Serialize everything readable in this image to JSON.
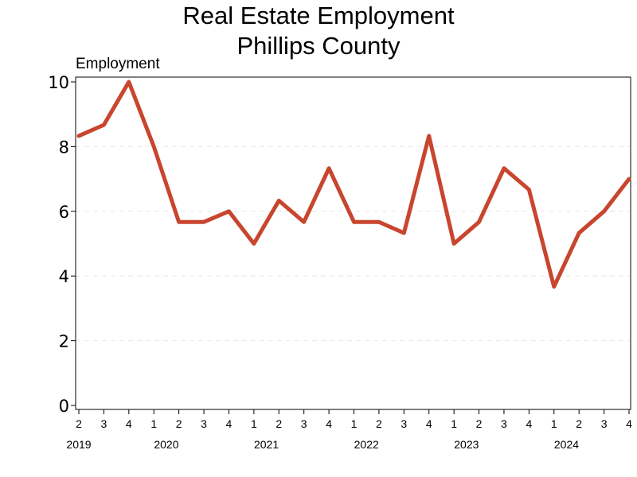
{
  "chart_data": {
    "type": "line",
    "title": [
      "Real Estate Employment",
      "Phillips County"
    ],
    "ylabel": "Employment",
    "ylim": [
      0,
      10
    ],
    "yticks": [
      0,
      2,
      4,
      6,
      8,
      10
    ],
    "grid": "horizontal-dashed",
    "color": "#c8452e",
    "x": [
      {
        "quarter": "2",
        "year": "2019"
      },
      {
        "quarter": "3",
        "year": "2019"
      },
      {
        "quarter": "4",
        "year": "2019"
      },
      {
        "quarter": "1",
        "year": "2020"
      },
      {
        "quarter": "2",
        "year": "2020"
      },
      {
        "quarter": "3",
        "year": "2020"
      },
      {
        "quarter": "4",
        "year": "2020"
      },
      {
        "quarter": "1",
        "year": "2021"
      },
      {
        "quarter": "2",
        "year": "2021"
      },
      {
        "quarter": "3",
        "year": "2021"
      },
      {
        "quarter": "4",
        "year": "2021"
      },
      {
        "quarter": "1",
        "year": "2022"
      },
      {
        "quarter": "2",
        "year": "2022"
      },
      {
        "quarter": "3",
        "year": "2022"
      },
      {
        "quarter": "4",
        "year": "2022"
      },
      {
        "quarter": "1",
        "year": "2023"
      },
      {
        "quarter": "2",
        "year": "2023"
      },
      {
        "quarter": "3",
        "year": "2023"
      },
      {
        "quarter": "4",
        "year": "2023"
      },
      {
        "quarter": "1",
        "year": "2024"
      },
      {
        "quarter": "2",
        "year": "2024"
      },
      {
        "quarter": "3",
        "year": "2024"
      },
      {
        "quarter": "4",
        "year": "2024"
      }
    ],
    "values": [
      8.33,
      8.67,
      10.0,
      8.0,
      5.67,
      5.67,
      6.0,
      5.0,
      6.33,
      5.67,
      7.33,
      5.67,
      5.67,
      5.33,
      8.33,
      5.0,
      5.67,
      7.33,
      6.67,
      3.67,
      5.33,
      6.0,
      7.0
    ],
    "year_labels": [
      "2019",
      "2020",
      "2021",
      "2022",
      "2023",
      "2024"
    ]
  }
}
